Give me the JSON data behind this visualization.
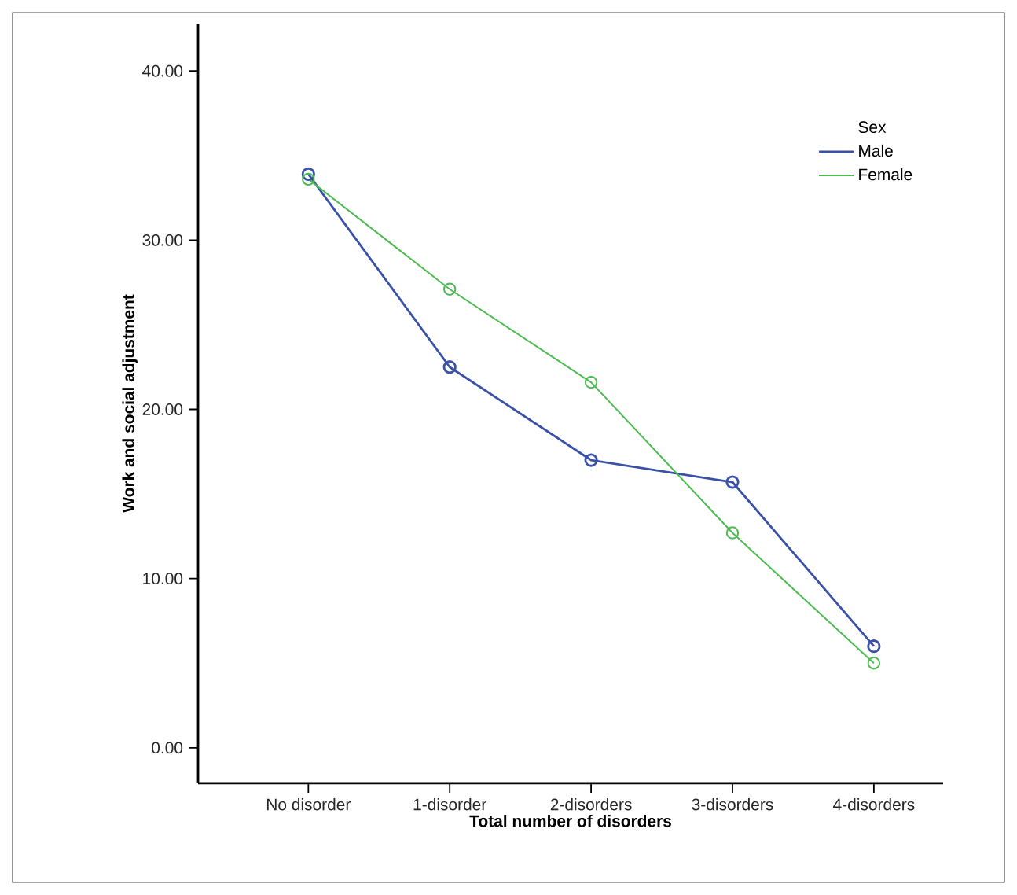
{
  "chart_data": {
    "type": "line",
    "xlabel": "Total number of disorders",
    "ylabel": "Work and social adjustment",
    "legend_title": "Sex",
    "categories": [
      "No disorder",
      "1-disorder",
      "2-disorders",
      "3-disorders",
      "4-disorders"
    ],
    "series": [
      {
        "name": "Male",
        "color": "#3a51a8",
        "values": [
          33.9,
          22.5,
          17.0,
          15.7,
          6.0
        ]
      },
      {
        "name": "Female",
        "color": "#4cbb50",
        "values": [
          33.6,
          27.1,
          21.6,
          12.7,
          5.0
        ]
      }
    ],
    "ylim": [
      -2.1,
      42.8
    ],
    "yticks": [
      {
        "value": 0,
        "label": "0.00"
      },
      {
        "value": 10,
        "label": "10.00"
      },
      {
        "value": 20,
        "label": "20.00"
      },
      {
        "value": 30,
        "label": "30.00"
      },
      {
        "value": 40,
        "label": "40.00"
      }
    ],
    "grid": false,
    "legend": "top right",
    "marker": "circle",
    "line_style": "solid"
  }
}
